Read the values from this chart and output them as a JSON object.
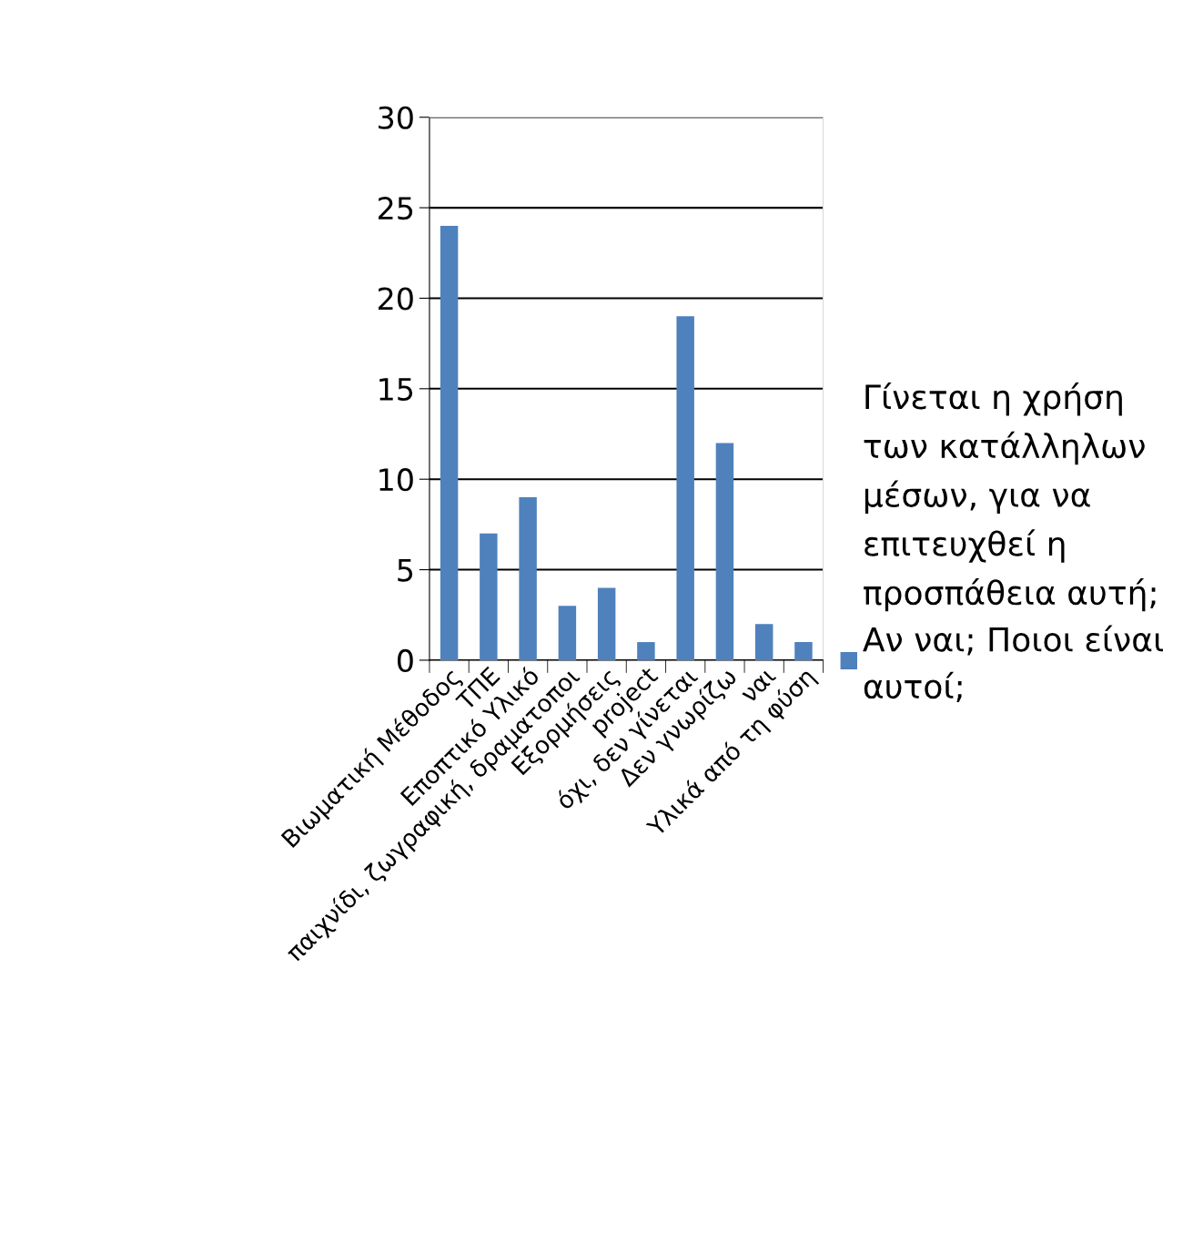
{
  "chart_data": {
    "type": "bar",
    "categories": [
      "Βιωματική Μέθοδος",
      "ΤΠΕ",
      "Εποπτικό Υλικό",
      "παιχνίδι, ζωγραφική, δραματοποι",
      "Εξορμήσεις",
      "project",
      "όχι, δεν γίνεται",
      "Δεν γνωρίζω",
      "ναι",
      "Υλικά από τη φύση"
    ],
    "series": [
      {
        "name": "Γίνεται η χρήση των κατάλληλων μέσων, για να επιτευχθεί η προσπάθεια αυτή; Αν ναι; Ποιοι είναι αυτοί;",
        "color": "#4f81bd",
        "values": [
          24,
          7,
          9,
          3,
          4,
          1,
          19,
          12,
          2,
          1
        ]
      }
    ],
    "ylim": [
      0,
      30
    ],
    "yticks": [
      0,
      5,
      10,
      15,
      20,
      25,
      30
    ],
    "grid": "y",
    "legend": "right"
  }
}
